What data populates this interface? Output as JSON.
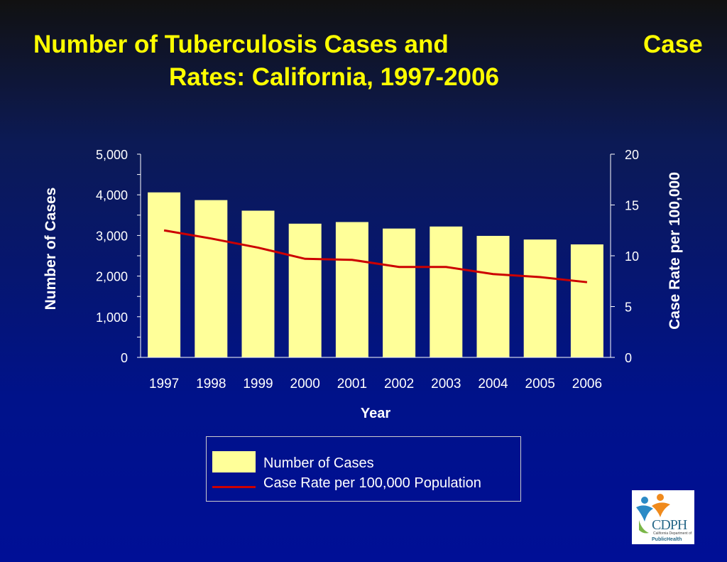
{
  "title": {
    "line1": "Number of Tuberculosis Cases and",
    "line1_tail": "Case",
    "line2": "Rates: California, 1997-2006"
  },
  "chart_data": {
    "type": "bar+line",
    "categories": [
      "1997",
      "1998",
      "1999",
      "2000",
      "2001",
      "2002",
      "2003",
      "2004",
      "2005",
      "2006"
    ],
    "series": [
      {
        "name": "Number of Cases",
        "type": "bar",
        "axis": "left",
        "values": [
          4060,
          3870,
          3610,
          3290,
          3330,
          3170,
          3220,
          2990,
          2900,
          2780
        ]
      },
      {
        "name": "Case Rate per 100,000 Population",
        "type": "line",
        "axis": "right",
        "values": [
          12.5,
          11.7,
          10.8,
          9.7,
          9.6,
          8.9,
          8.9,
          8.2,
          7.9,
          7.4
        ]
      }
    ],
    "xlabel": "Year",
    "ylabel_left": "Number of Cases",
    "ylabel_right": "Case Rate per 100,000",
    "ylim_left": [
      0,
      5000
    ],
    "ylim_right": [
      0,
      20
    ],
    "left_ticks": [
      "0",
      "1,000",
      "2,000",
      "3,000",
      "4,000",
      "5,000"
    ],
    "right_ticks": [
      "0",
      "5",
      "10",
      "15",
      "20"
    ],
    "bar_color": "#ffff99",
    "line_color": "#cc0000",
    "grid": false,
    "legend_position": "bottom"
  },
  "legend": {
    "cases": "Number of Cases",
    "rate": "Case Rate per 100,000 Population"
  },
  "logo": {
    "text": "CDPH",
    "subtext": "California Department of",
    "tag": "PublicHealth"
  }
}
